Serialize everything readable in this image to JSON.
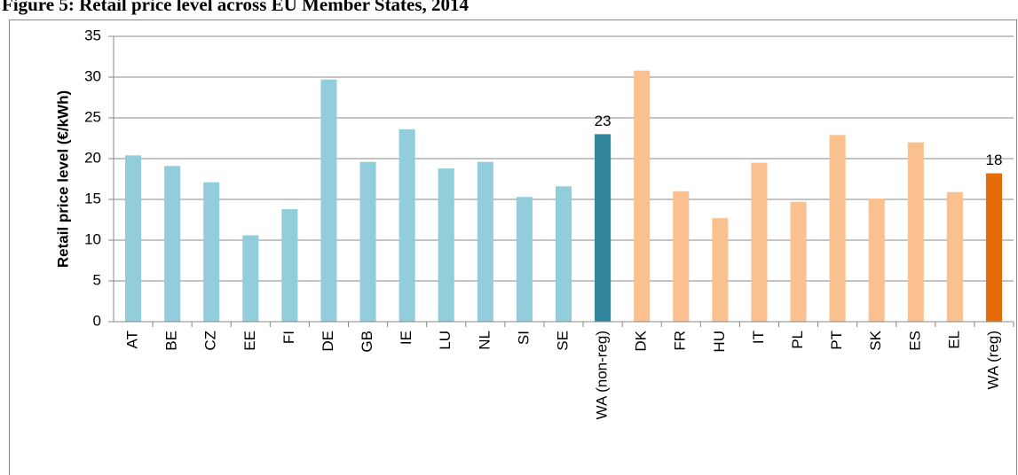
{
  "chart_data": {
    "type": "bar",
    "title": "Figure 5: Retail price level across EU Member States, 2014",
    "y_label": "Retail price level (€/kWh)",
    "categories": [
      "AT",
      "BE",
      "CZ",
      "EE",
      "FI",
      "DE",
      "GB",
      "IE",
      "LU",
      "NL",
      "SI",
      "SE",
      "WA (non-reg)",
      "DK",
      "FR",
      "HU",
      "IT",
      "PL",
      "PT",
      "SK",
      "ES",
      "EL",
      "WA (reg)"
    ],
    "values": [
      20.4,
      19.1,
      17.1,
      10.6,
      13.8,
      29.7,
      19.6,
      23.6,
      18.8,
      19.6,
      15.3,
      16.6,
      23.0,
      30.8,
      16.0,
      12.7,
      19.5,
      14.7,
      22.9,
      15.1,
      22.0,
      15.9,
      18.2
    ],
    "value_labels": [
      null,
      null,
      null,
      null,
      null,
      null,
      null,
      null,
      null,
      null,
      null,
      null,
      "23",
      null,
      null,
      null,
      null,
      null,
      null,
      null,
      null,
      null,
      "18"
    ],
    "colors": [
      "#92cddc",
      "#92cddc",
      "#92cddc",
      "#92cddc",
      "#92cddc",
      "#92cddc",
      "#92cddc",
      "#92cddc",
      "#92cddc",
      "#92cddc",
      "#92cddc",
      "#92cddc",
      "#31859c",
      "#fac090",
      "#fac090",
      "#fac090",
      "#fac090",
      "#fac090",
      "#fac090",
      "#fac090",
      "#fac090",
      "#fac090",
      "#e46c0a"
    ],
    "ylim": [
      0,
      35
    ],
    "yticks": [
      0,
      5,
      10,
      15,
      20,
      25,
      30,
      35
    ],
    "grid": true
  }
}
